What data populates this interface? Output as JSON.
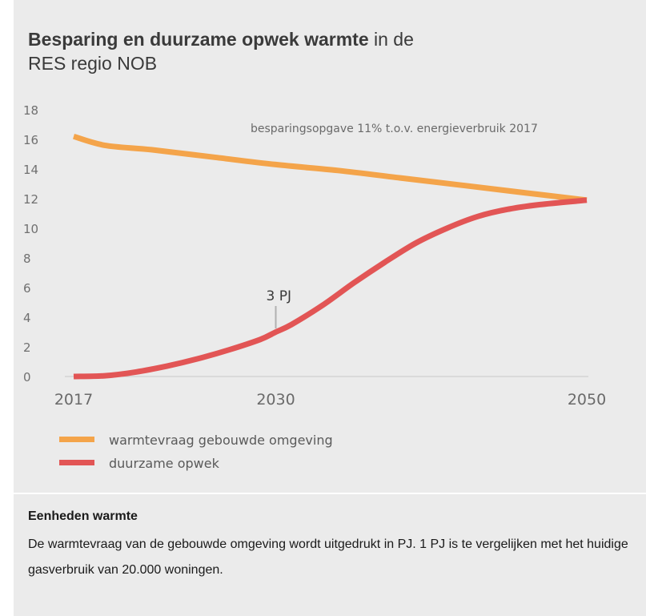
{
  "title": {
    "bold": "Besparing en duurzame opwek warmte",
    "rest_line1": " in de",
    "line2": "RES regio NOB"
  },
  "note": {
    "heading": "Eenheden warmte",
    "body": "De warmtevraag van de gebouwde omgeving wordt uitgedrukt in PJ. 1 PJ is te vergelijken met het huidige gasverbruik van 20.000 woningen."
  },
  "chart_data": {
    "type": "line",
    "x_ticks": [
      2017,
      2030,
      2050
    ],
    "xlim": [
      2017,
      2050
    ],
    "ylim": [
      0,
      18
    ],
    "y_ticks": [
      0,
      2,
      4,
      6,
      8,
      10,
      12,
      14,
      16,
      18
    ],
    "grid": false,
    "legend_position": "bottom-left",
    "series": [
      {
        "name": "warmtevraag gebouwde omgeving",
        "color": "#f4a44a",
        "x": [
          2017,
          2019,
          2022,
          2026,
          2030,
          2034,
          2038,
          2042,
          2046,
          2050
        ],
        "y": [
          16.2,
          15.6,
          15.3,
          14.8,
          14.3,
          13.9,
          13.4,
          12.9,
          12.4,
          11.9
        ]
      },
      {
        "name": "duurzame opwek",
        "color": "#e25555",
        "x": [
          2017,
          2019,
          2021,
          2023,
          2025,
          2027,
          2029,
          2030,
          2031,
          2033,
          2035,
          2037,
          2039,
          2041,
          2043,
          2045,
          2047,
          2050
        ],
        "y": [
          0.0,
          0.05,
          0.3,
          0.7,
          1.2,
          1.8,
          2.5,
          3.0,
          3.5,
          4.8,
          6.3,
          7.7,
          9.0,
          10.0,
          10.8,
          11.3,
          11.6,
          11.9
        ]
      }
    ],
    "annotations": [
      {
        "text": "besparingsopgave 11% t.o.v. energieverbruik 2017"
      },
      {
        "text": "3 PJ",
        "x": 2030,
        "y": 3.0
      }
    ]
  }
}
